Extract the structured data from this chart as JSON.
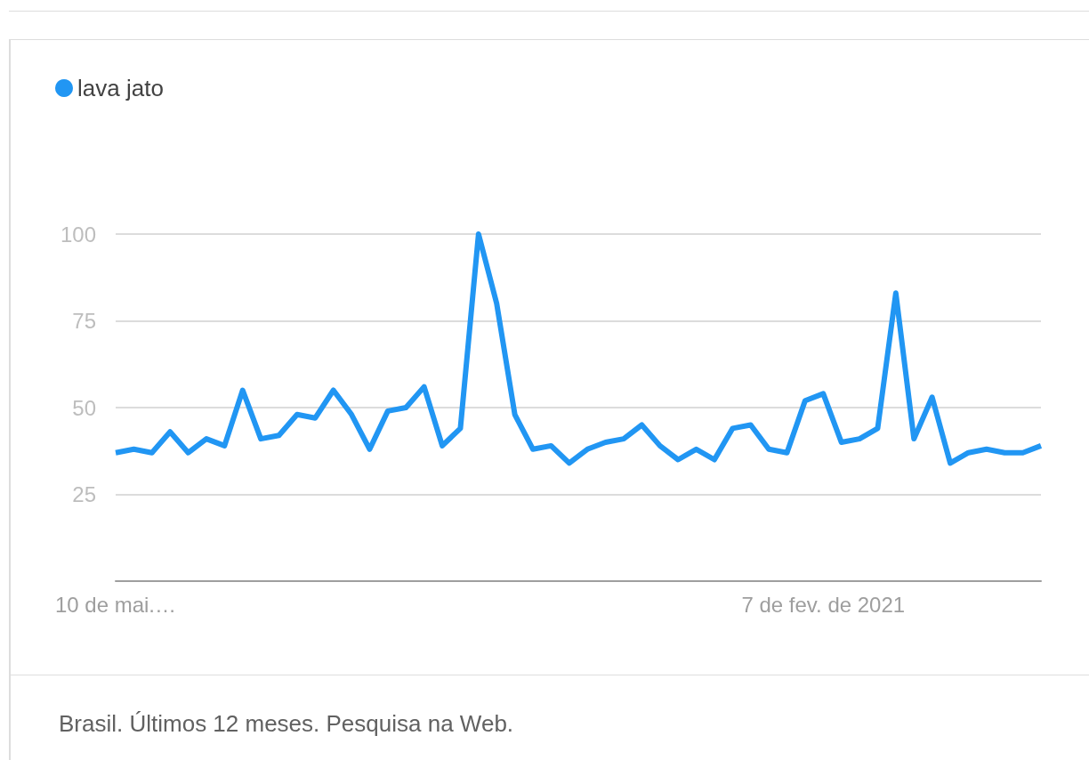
{
  "chart_data": {
    "type": "line",
    "categories": [
      "10 de mai.…",
      null,
      null,
      null,
      null,
      null,
      null,
      null,
      null,
      null,
      null,
      null,
      null,
      null,
      null,
      null,
      null,
      null,
      null,
      null,
      null,
      null,
      null,
      null,
      null,
      null,
      null,
      null,
      null,
      null,
      null,
      null,
      null,
      null,
      null,
      null,
      null,
      null,
      null,
      "7 de fev. de 2021",
      null,
      null,
      null,
      null,
      null,
      null,
      null,
      null,
      null,
      null,
      null,
      null
    ],
    "series": [
      {
        "name": "lava jato",
        "color": "#2196f3",
        "values": [
          37,
          38,
          37,
          43,
          37,
          41,
          39,
          55,
          41,
          42,
          48,
          47,
          55,
          48,
          38,
          49,
          50,
          56,
          39,
          44,
          100,
          80,
          48,
          38,
          39,
          34,
          38,
          40,
          41,
          45,
          39,
          35,
          38,
          35,
          44,
          45,
          38,
          37,
          52,
          54,
          40,
          41,
          44,
          83,
          41,
          53,
          34,
          37,
          38,
          37,
          37,
          39
        ]
      }
    ],
    "ylim": [
      0,
      100
    ],
    "yticks": [
      {
        "value": 0,
        "label": null
      },
      25,
      50,
      75,
      100
    ],
    "grid": "y",
    "legend": "top left",
    "marker": "none",
    "line_style": "solid",
    "annotations": [
      "Brasil. Últimos 12 meses. Pesquisa na Web."
    ]
  }
}
